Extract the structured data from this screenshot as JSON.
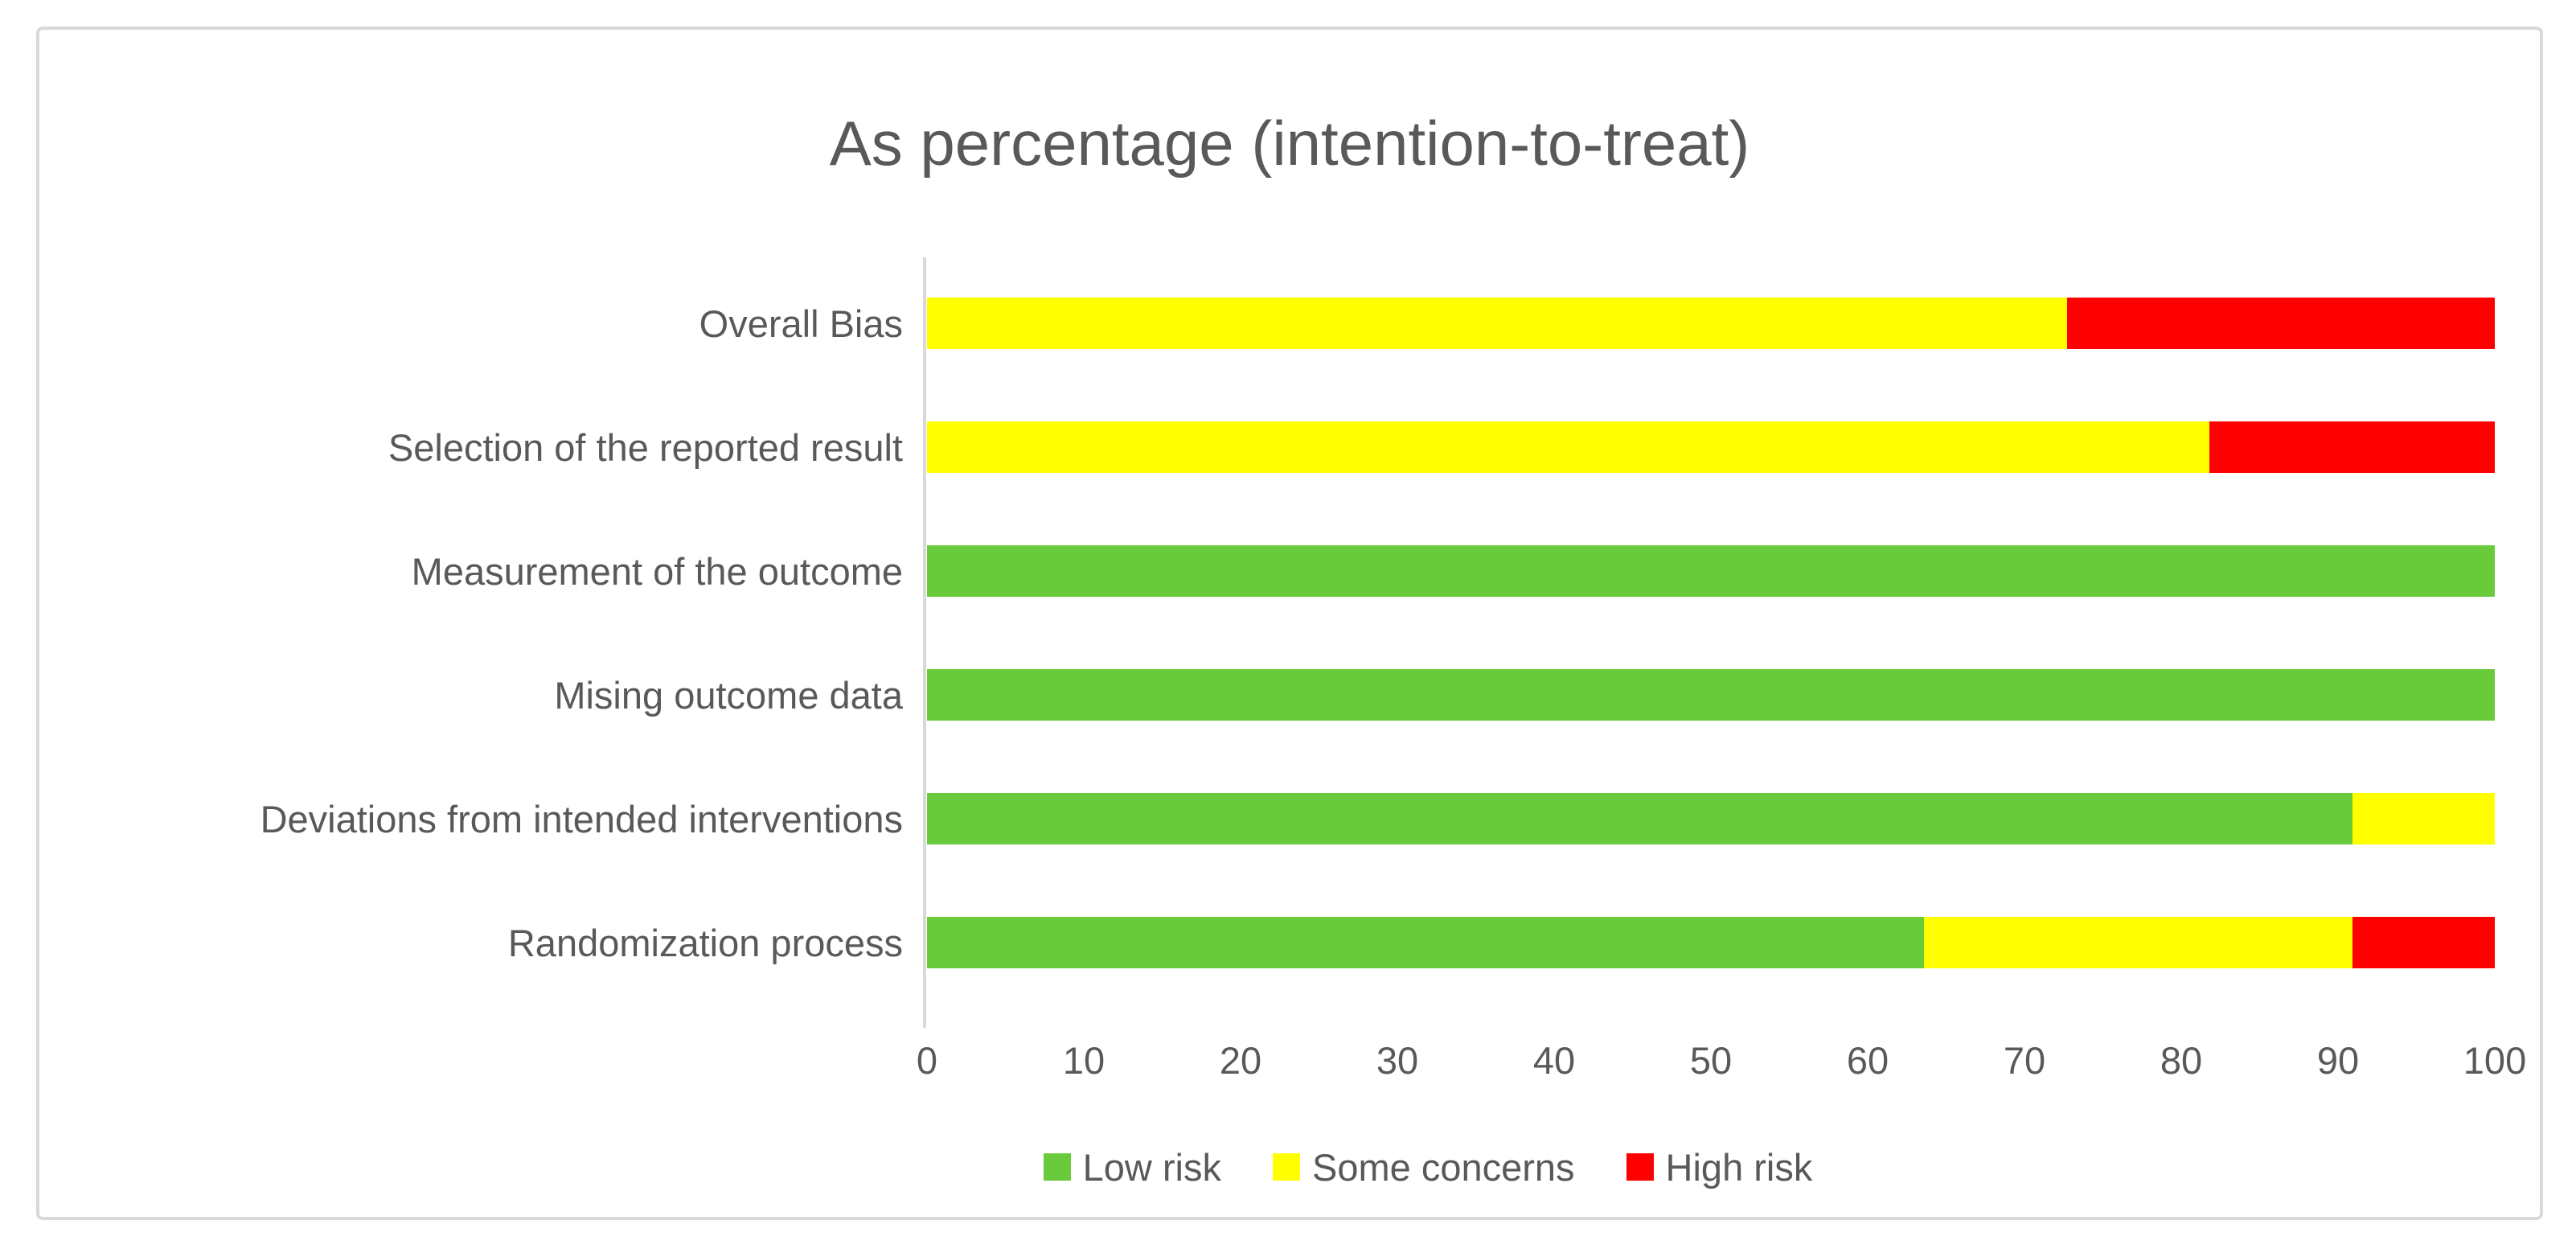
{
  "chart_data": {
    "type": "bar",
    "orientation": "horizontal",
    "stacked": true,
    "title": "As percentage (intention-to-treat)",
    "categories": [
      "Overall Bias",
      "Selection of the reported result",
      "Measurement of the outcome",
      "Mising outcome data",
      "Deviations from intended interventions",
      "Randomization process"
    ],
    "series": [
      {
        "name": "Low risk",
        "color": "#69cb3c",
        "values": [
          0,
          0,
          100,
          100,
          90.9,
          63.6
        ]
      },
      {
        "name": "Some concerns",
        "color": "#ffff00",
        "values": [
          72.7,
          81.8,
          0,
          0,
          9.1,
          27.3
        ]
      },
      {
        "name": "High risk",
        "color": "#ff0000",
        "values": [
          27.3,
          18.2,
          0,
          0,
          0,
          9.1
        ]
      }
    ],
    "xlim": [
      0,
      100
    ],
    "xticks": [
      0,
      10,
      20,
      30,
      40,
      50,
      60,
      70,
      80,
      90,
      100
    ],
    "legend_position": "bottom",
    "grid": false
  },
  "colors": {
    "frame_border": "#d9d9d9",
    "axis_line": "#d9d9d9",
    "text": "#595959",
    "background": "#ffffff"
  }
}
